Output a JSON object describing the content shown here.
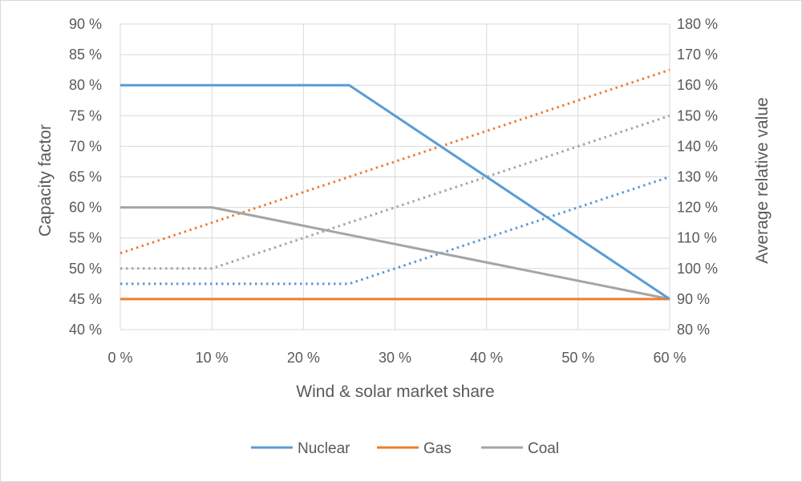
{
  "chart_data": {
    "type": "line",
    "title": "",
    "xlabel": "Wind & solar market share",
    "ylabel": "Capacity factor",
    "y2label": "Average relative value",
    "x": [
      0,
      10,
      20,
      30,
      40,
      50,
      60
    ],
    "x_tick_labels": [
      "0 %",
      "10 %",
      "20 %",
      "30 %",
      "40 %",
      "50 %",
      "60 %"
    ],
    "xlim": [
      0,
      60
    ],
    "ylim": [
      40,
      90
    ],
    "y_ticks": [
      40,
      45,
      50,
      55,
      60,
      65,
      70,
      75,
      80,
      85,
      90
    ],
    "y_tick_labels": [
      "40 %",
      "45 %",
      "50 %",
      "55 %",
      "60 %",
      "65 %",
      "70 %",
      "75 %",
      "80 %",
      "85 %",
      "90 %"
    ],
    "y2lim": [
      80,
      180
    ],
    "y2_ticks": [
      80,
      90,
      100,
      110,
      120,
      130,
      140,
      150,
      160,
      170,
      180
    ],
    "y2_tick_labels": [
      "80 %",
      "90 %",
      "100 %",
      "110 %",
      "120 %",
      "130 %",
      "140 %",
      "150 %",
      "160 %",
      "170 %",
      "180 %"
    ],
    "grid": true,
    "legend_position": "bottom",
    "series": [
      {
        "name": "Nuclear",
        "color": "#5b9bd5",
        "axis": "left",
        "style": "solid",
        "x": [
          0,
          25,
          60
        ],
        "y": [
          80,
          80,
          45
        ]
      },
      {
        "name": "Gas",
        "color": "#ed7d31",
        "axis": "left",
        "style": "solid",
        "x": [
          0,
          60
        ],
        "y": [
          45,
          45
        ]
      },
      {
        "name": "Coal",
        "color": "#a5a5a5",
        "axis": "left",
        "style": "solid",
        "x": [
          0,
          10,
          60
        ],
        "y": [
          60,
          60,
          45
        ]
      },
      {
        "name": "",
        "color": "#5b9bd5",
        "axis": "right",
        "style": "dotted",
        "x": [
          0,
          25,
          60
        ],
        "y": [
          95,
          95,
          130
        ]
      },
      {
        "name": "",
        "color": "#ed7d31",
        "axis": "right",
        "style": "dotted",
        "x": [
          0,
          60
        ],
        "y": [
          105,
          165
        ]
      },
      {
        "name": "",
        "color": "#a5a5a5",
        "axis": "right",
        "style": "dotted",
        "x": [
          0,
          10,
          60
        ],
        "y": [
          100,
          100,
          150
        ]
      }
    ],
    "legend": [
      "Nuclear",
      "Gas",
      "Coal"
    ]
  }
}
